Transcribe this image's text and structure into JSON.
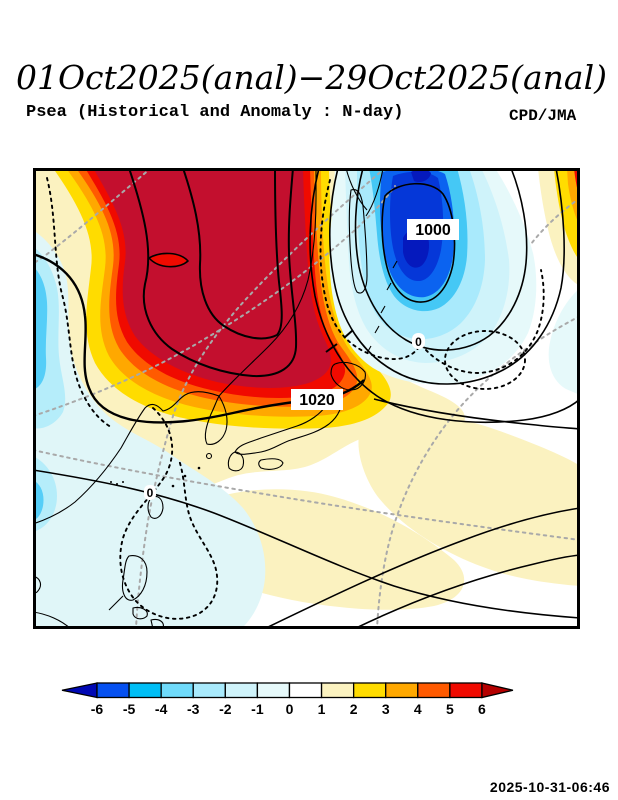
{
  "header": {
    "title": "01Oct2025(anal)−29Oct2025(anal)",
    "subtitle": "Psea (Historical and Anomaly : N-day)",
    "agency": "CPD/JMA"
  },
  "map": {
    "contour_labels": [
      {
        "text": "1000"
      },
      {
        "text": "1020"
      },
      {
        "text": "0"
      },
      {
        "text": "0"
      }
    ]
  },
  "colorbar": {
    "ticks": [
      "-6",
      "-5",
      "-4",
      "-3",
      "-2",
      "-1",
      "0",
      "1",
      "2",
      "3",
      "4",
      "5",
      "6"
    ],
    "cell_colors": [
      "#0550F0",
      "#00BEF5",
      "#6FDAFA",
      "#A9EAFC",
      "#CFF3FA",
      "#E6F9FA",
      "#FFFFFF",
      "#FBF2C0",
      "#FFDC00",
      "#FFA800",
      "#FF5A00",
      "#F00A00"
    ],
    "arrow_left_color": "#0008B4",
    "arrow_right_color": "#B40000"
  },
  "footer": {
    "timestamp": "2025-10-31-06:46"
  },
  "chart_data": {
    "type": "heatmap",
    "title": "01Oct2025(anal)−29Oct2025(anal)",
    "subtitle": "Psea (Historical and Anomaly : N-day)",
    "field": "Sea level pressure (historical) with anomaly shading, hPa",
    "colorbar_ticks": [
      -6,
      -5,
      -4,
      -3,
      -2,
      -1,
      0,
      1,
      2,
      3,
      4,
      5,
      6
    ],
    "labeled_pressure_contours_hPa": [
      1000,
      1020
    ],
    "zero_anomaly_contours_labeled": 2,
    "anomaly_centers": [
      {
        "sign": "positive",
        "value": "> +6",
        "location": "continental East Asia, upper-left of map"
      },
      {
        "sign": "negative",
        "value": "< -6",
        "location": "Okhotsk/Kamchatka region, upper-right of map"
      }
    ],
    "legend_position": "bottom",
    "credit": "CPD/JMA"
  }
}
